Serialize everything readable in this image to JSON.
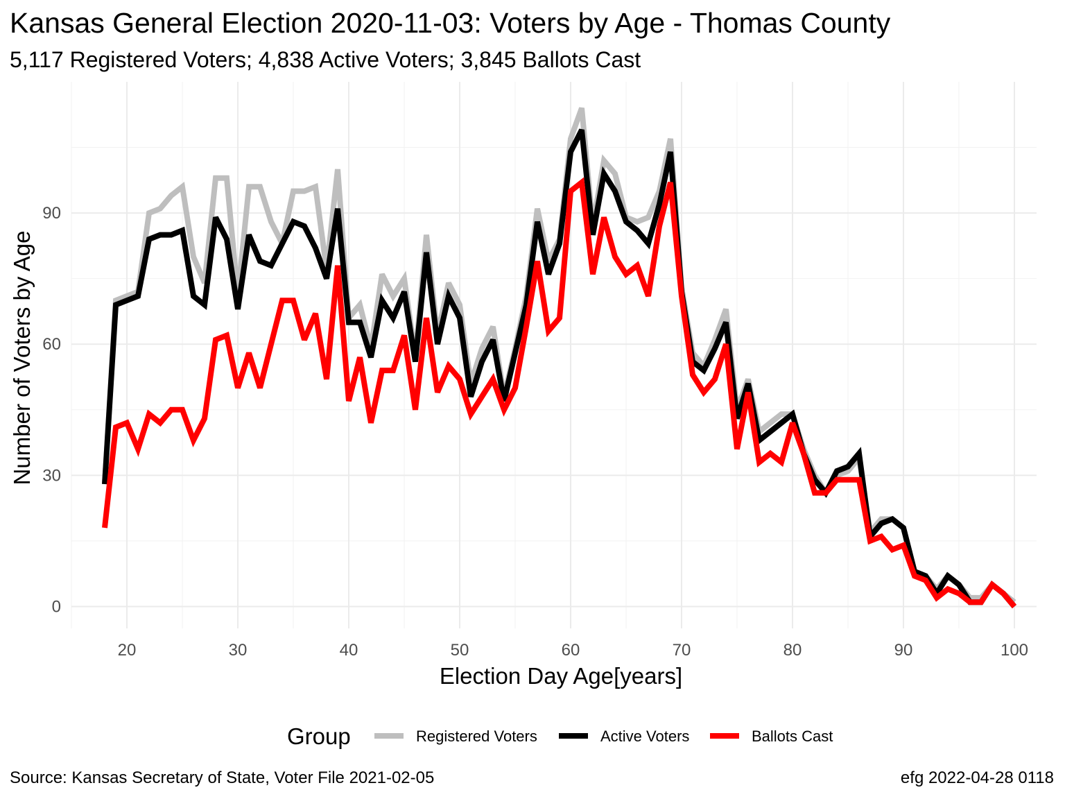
{
  "chart_data": {
    "type": "line",
    "title": "Kansas General Election 2020-11-03:  Voters by Age - Thomas County",
    "subtitle": "5,117 Registered Voters; 4,838 Active Voters; 3,845 Ballots Cast",
    "xlabel": "Election Day Age[years]",
    "ylabel": "Number of Voters by Age",
    "xlim": [
      15,
      102
    ],
    "ylim": [
      -5,
      120
    ],
    "x_ticks": [
      20,
      30,
      40,
      50,
      60,
      70,
      80,
      90,
      100
    ],
    "y_ticks": [
      0,
      30,
      60,
      90
    ],
    "grid": true,
    "legend_title": "Group",
    "legend_position": "bottom",
    "x": [
      18,
      19,
      20,
      21,
      22,
      23,
      24,
      25,
      26,
      27,
      28,
      29,
      30,
      31,
      32,
      33,
      34,
      35,
      36,
      37,
      38,
      39,
      40,
      41,
      42,
      43,
      44,
      45,
      46,
      47,
      48,
      49,
      50,
      51,
      52,
      53,
      54,
      55,
      56,
      57,
      58,
      59,
      60,
      61,
      62,
      63,
      64,
      65,
      66,
      67,
      68,
      69,
      70,
      71,
      72,
      73,
      74,
      75,
      76,
      77,
      78,
      79,
      80,
      81,
      82,
      83,
      84,
      85,
      86,
      87,
      88,
      89,
      90,
      91,
      92,
      93,
      94,
      95,
      96,
      97,
      98,
      99,
      100
    ],
    "series": [
      {
        "name": "Registered Voters",
        "color": "#bebebe",
        "values": [
          28,
          70,
          71,
          72,
          90,
          91,
          94,
          96,
          80,
          74,
          98,
          98,
          71,
          96,
          96,
          88,
          83,
          95,
          95,
          96,
          77,
          100,
          66,
          69,
          59,
          76,
          71,
          75,
          57,
          85,
          62,
          74,
          69,
          51,
          59,
          64,
          48,
          59,
          71,
          91,
          79,
          84,
          107,
          114,
          87,
          102,
          99,
          89,
          88,
          89,
          95,
          107,
          73,
          58,
          55,
          61,
          68,
          45,
          52,
          40,
          42,
          44,
          44,
          36,
          30,
          26,
          30,
          31,
          34,
          17,
          20,
          20,
          18,
          8,
          7,
          4,
          7,
          5,
          2,
          2,
          5,
          3,
          1
        ]
      },
      {
        "name": "Active Voters",
        "color": "#000000",
        "values": [
          28,
          69,
          70,
          71,
          84,
          85,
          85,
          86,
          71,
          69,
          89,
          84,
          68,
          85,
          79,
          78,
          83,
          88,
          87,
          82,
          75,
          91,
          65,
          65,
          57,
          70,
          66,
          72,
          56,
          81,
          60,
          71,
          66,
          48,
          56,
          61,
          47,
          58,
          69,
          88,
          76,
          83,
          104,
          109,
          85,
          99,
          95,
          88,
          86,
          83,
          92,
          104,
          72,
          56,
          54,
          59,
          65,
          43,
          51,
          38,
          40,
          42,
          44,
          35,
          29,
          26,
          31,
          32,
          35,
          16,
          19,
          20,
          18,
          8,
          7,
          3,
          7,
          5,
          1,
          1,
          5,
          3,
          0
        ]
      },
      {
        "name": "Ballots Cast",
        "color": "#ff0000",
        "values": [
          18,
          41,
          42,
          36,
          44,
          42,
          45,
          45,
          38,
          43,
          61,
          62,
          50,
          58,
          50,
          60,
          70,
          70,
          61,
          67,
          52,
          78,
          47,
          57,
          42,
          54,
          54,
          62,
          45,
          66,
          49,
          55,
          52,
          44,
          48,
          52,
          45,
          50,
          64,
          79,
          63,
          66,
          95,
          97,
          76,
          89,
          80,
          76,
          78,
          71,
          87,
          97,
          71,
          53,
          49,
          52,
          60,
          36,
          49,
          33,
          35,
          33,
          42,
          35,
          26,
          26,
          29,
          29,
          29,
          15,
          16,
          13,
          14,
          7,
          6,
          2,
          4,
          3,
          1,
          1,
          5,
          3,
          0
        ]
      }
    ]
  },
  "caption_left": "Source:  Kansas Secretary of State, Voter File  2021-02-05",
  "caption_right": "efg 2022-04-28 0118"
}
